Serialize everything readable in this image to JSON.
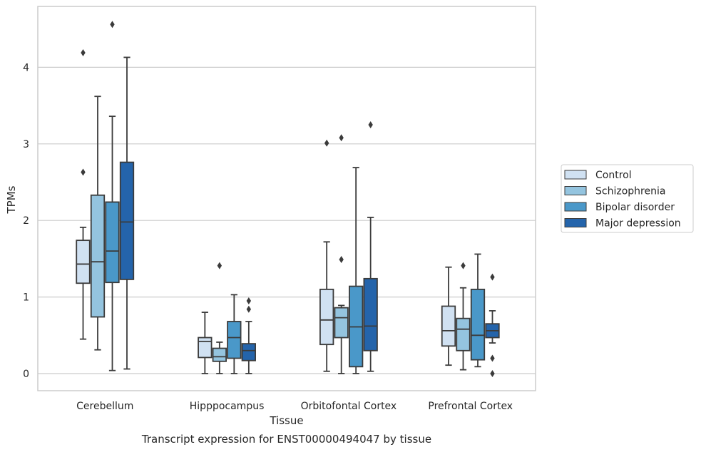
{
  "chart_data": {
    "type": "box",
    "title": "",
    "caption": "Transcript expression for ENST00000494047 by tissue",
    "xlabel": "Tissue",
    "ylabel": "TPMs",
    "ylim": [
      -0.22,
      4.8
    ],
    "yticks": [
      0,
      1,
      2,
      3,
      4
    ],
    "grid": "horizontal",
    "legend_position": "right",
    "categories": [
      "Cerebellum",
      "Hipppocampus",
      "Orbitofontal Cortex",
      "Prefrontal Cortex"
    ],
    "series": [
      {
        "name": "Control",
        "color": "#d0e1f2",
        "boxes": [
          {
            "whislo": 0.45,
            "q1": 1.18,
            "med": 1.43,
            "q3": 1.74,
            "whishi": 1.91,
            "fliers": [
              2.63,
              4.19
            ]
          },
          {
            "whislo": 0.0,
            "q1": 0.21,
            "med": 0.42,
            "q3": 0.47,
            "whishi": 0.8,
            "fliers": []
          },
          {
            "whislo": 0.03,
            "q1": 0.38,
            "med": 0.7,
            "q3": 1.1,
            "whishi": 1.72,
            "fliers": [
              3.01
            ]
          },
          {
            "whislo": 0.11,
            "q1": 0.36,
            "med": 0.56,
            "q3": 0.88,
            "whishi": 1.39,
            "fliers": []
          }
        ]
      },
      {
        "name": "Schizophrenia",
        "color": "#94c4df",
        "boxes": [
          {
            "whislo": 0.31,
            "q1": 0.74,
            "med": 1.46,
            "q3": 2.33,
            "whishi": 3.62,
            "fliers": []
          },
          {
            "whislo": 0.0,
            "q1": 0.16,
            "med": 0.22,
            "q3": 0.33,
            "whishi": 0.41,
            "fliers": [
              1.41
            ]
          },
          {
            "whislo": 0.0,
            "q1": 0.47,
            "med": 0.73,
            "q3": 0.86,
            "whishi": 0.89,
            "fliers": [
              1.49,
              3.08
            ]
          },
          {
            "whislo": 0.05,
            "q1": 0.3,
            "med": 0.58,
            "q3": 0.72,
            "whishi": 1.12,
            "fliers": [
              1.41
            ]
          }
        ]
      },
      {
        "name": "Bipolar disorder",
        "color": "#4a98c9",
        "boxes": [
          {
            "whislo": 0.04,
            "q1": 1.19,
            "med": 1.6,
            "q3": 2.24,
            "whishi": 3.36,
            "fliers": [
              4.56
            ]
          },
          {
            "whislo": 0.0,
            "q1": 0.2,
            "med": 0.47,
            "q3": 0.68,
            "whishi": 1.03,
            "fliers": []
          },
          {
            "whislo": 0.0,
            "q1": 0.09,
            "med": 0.61,
            "q3": 1.14,
            "whishi": 2.69,
            "fliers": []
          },
          {
            "whislo": 0.09,
            "q1": 0.18,
            "med": 0.5,
            "q3": 1.1,
            "whishi": 1.56,
            "fliers": []
          }
        ]
      },
      {
        "name": "Major depression",
        "color": "#2464ab",
        "boxes": [
          {
            "whislo": 0.06,
            "q1": 1.23,
            "med": 1.98,
            "q3": 2.76,
            "whishi": 4.13,
            "fliers": []
          },
          {
            "whislo": 0.0,
            "q1": 0.17,
            "med": 0.3,
            "q3": 0.39,
            "whishi": 0.68,
            "fliers": [
              0.84,
              0.95
            ]
          },
          {
            "whislo": 0.03,
            "q1": 0.3,
            "med": 0.62,
            "q3": 1.24,
            "whishi": 2.04,
            "fliers": [
              3.25
            ]
          },
          {
            "whislo": 0.4,
            "q1": 0.47,
            "med": 0.56,
            "q3": 0.65,
            "whishi": 0.82,
            "fliers": [
              0.0,
              0.2,
              1.26
            ]
          }
        ]
      }
    ]
  }
}
